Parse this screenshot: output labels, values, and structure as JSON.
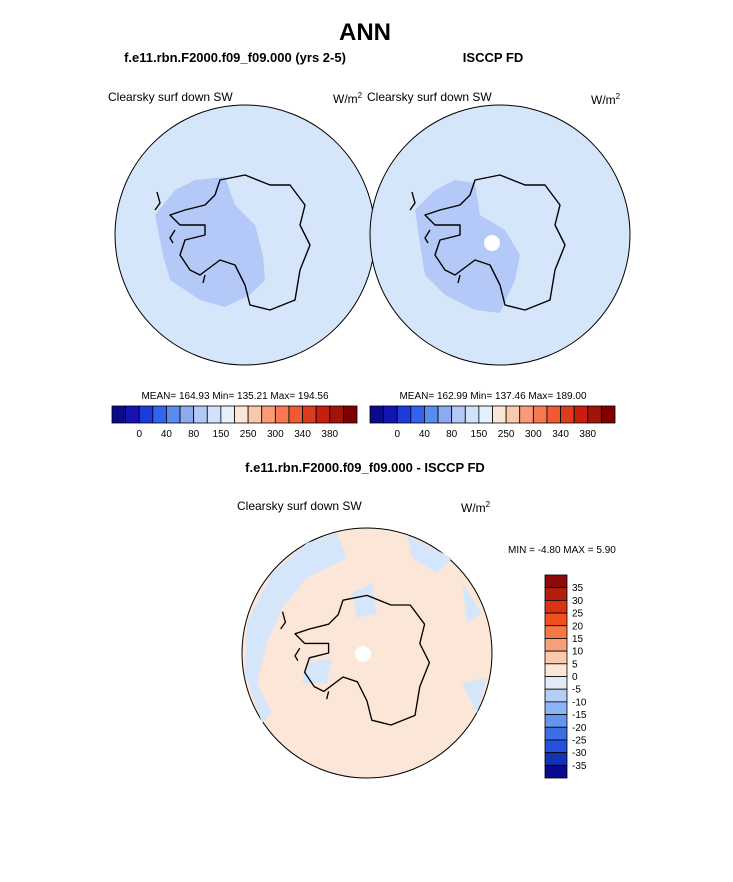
{
  "title": "ANN",
  "panels": [
    {
      "title": "f.e11.rbn.F2000.f09_f09.000 (yrs 2-5)",
      "variable": "Clearsky surf down SW",
      "units": {
        "base": "W/m",
        "exponent": "2"
      },
      "stats": "MEAN= 164.93  Min= 135.21  Max= 194.56",
      "colorbar": {
        "labels": [
          null,
          0,
          null,
          40,
          null,
          80,
          null,
          150,
          null,
          250,
          null,
          300,
          null,
          340,
          null,
          380,
          null
        ],
        "colors": [
          "#0a0a8c",
          "#1414b4",
          "#1e3cdc",
          "#3264f0",
          "#5a8cf0",
          "#8caaf0",
          "#b4c8f5",
          "#d2e1fa",
          "#e6f0fa",
          "#fae6d7",
          "#fac8af",
          "#fa9b78",
          "#f57850",
          "#f05a32",
          "#dc3c1e",
          "#c81e0f",
          "#a0140a",
          "#800000"
        ]
      }
    },
    {
      "title": "ISCCP FD",
      "variable": "Clearsky surf down SW",
      "units": {
        "base": "W/m",
        "exponent": "2"
      },
      "stats": "MEAN= 162.99  Min= 137.46  Max= 189.00",
      "colorbar": {
        "labels": [
          null,
          0,
          null,
          40,
          null,
          80,
          null,
          150,
          null,
          250,
          null,
          300,
          null,
          340,
          null,
          380,
          null
        ],
        "colors": [
          "#0a0a8c",
          "#1414b4",
          "#1e3cdc",
          "#3264f0",
          "#5a8cf0",
          "#8caaf0",
          "#b4c8f5",
          "#d2e1fa",
          "#e6f0fa",
          "#fae6d7",
          "#fac8af",
          "#fa9b78",
          "#f57850",
          "#f05a32",
          "#dc3c1e",
          "#c81e0f",
          "#a0140a",
          "#800000"
        ]
      }
    }
  ],
  "difference": {
    "title": "f.e11.rbn.F2000.f09_f09.000 - ISCCP FD",
    "variable": "Clearsky surf down SW",
    "units": {
      "base": "W/m",
      "exponent": "2"
    },
    "stats": "MIN =  -4.80 MAX =   5.90",
    "colorbar": {
      "labels": [
        35,
        30,
        25,
        20,
        15,
        10,
        5,
        0,
        -5,
        -10,
        -15,
        -20,
        -25,
        -30,
        -35
      ],
      "colors": [
        "#8c0a0a",
        "#b41e0f",
        "#dc3214",
        "#f0501e",
        "#f57846",
        "#f5a078",
        "#fac8aa",
        "#fbe6d7",
        "#e1ebf5",
        "#b4cdf5",
        "#8cb4f5",
        "#6496f0",
        "#3c6ee6",
        "#2850dc",
        "#1432b4",
        "#0a0a8c"
      ]
    }
  }
}
